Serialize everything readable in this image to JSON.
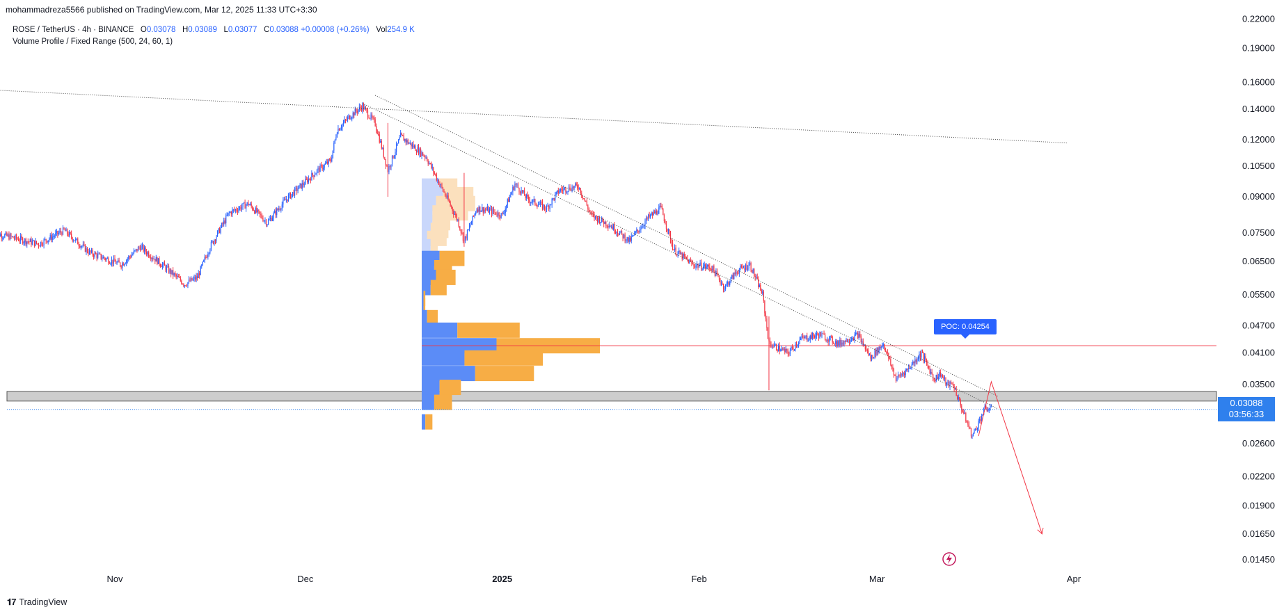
{
  "header": {
    "publish_line": "mohammadreza5566 published on TradingView.com, Mar 12, 2025 11:33 UTC+3:30"
  },
  "legend": {
    "symbol": "ROSE / TetherUS · 4h · BINANCE",
    "o_label": "O",
    "o_value": "0.03078",
    "h_label": "H",
    "h_value": "0.03089",
    "l_label": "L",
    "l_value": "0.03077",
    "c_label": "C",
    "c_value": "0.03088",
    "change": "+0.00008 (+0.26%)",
    "vol_label": "Vol",
    "vol_value": "254.9 K",
    "indicator": "Volume Profile / Fixed Range (500, 24, 60, 1)"
  },
  "colors": {
    "up": "#2962ff",
    "down": "#f23645",
    "vp_up": "#5b8cf7",
    "vp_down": "#f7ad45",
    "vp_up_va_light": "#c9d7fb",
    "vp_down_va_light": "#fbe0bd",
    "poc_line": "#f23645",
    "poc_label_bg": "#2962ff",
    "last_price_bg": "#2f80ed",
    "zone_fill": "#c8c8c8"
  },
  "poc_label": "POC: 0.04254",
  "last_price": {
    "price": "0.03088",
    "countdown": "03:56:33"
  },
  "footer": {
    "brand": "TradingView"
  },
  "chart_data": {
    "type": "candlestick",
    "symbol": "ROSE / TetherUS",
    "interval": "4h",
    "exchange": "BINANCE",
    "y_scale": "log",
    "ylim": [
      0.0135,
      0.225
    ],
    "y_ticks": [
      "0.22000",
      "0.19000",
      "0.16000",
      "0.14000",
      "0.12000",
      "0.10500",
      "0.09000",
      "0.07500",
      "0.06500",
      "0.05500",
      "0.04700",
      "0.04100",
      "0.03500",
      "0.02600",
      "0.02200",
      "0.01900",
      "0.01650",
      "0.01450"
    ],
    "x_ticks": [
      {
        "label": "Nov",
        "date": "2024-11-01",
        "bold": false
      },
      {
        "label": "Dec",
        "date": "2024-12-01",
        "bold": false
      },
      {
        "label": "2025",
        "date": "2025-01-01",
        "bold": true
      },
      {
        "label": "Feb",
        "date": "2025-02-01",
        "bold": false
      },
      {
        "label": "Mar",
        "date": "2025-03-01",
        "bold": false
      },
      {
        "label": "Apr",
        "date": "2025-04-01",
        "bold": false
      }
    ],
    "price_path": [
      [
        "2024-10-13",
        0.075
      ],
      [
        "2024-10-20",
        0.071
      ],
      [
        "2024-10-24",
        0.076
      ],
      [
        "2024-10-28",
        0.068
      ],
      [
        "2024-11-02",
        0.064
      ],
      [
        "2024-11-05",
        0.07
      ],
      [
        "2024-11-09",
        0.063
      ],
      [
        "2024-11-12",
        0.058
      ],
      [
        "2024-11-14",
        0.06
      ],
      [
        "2024-11-16",
        0.07
      ],
      [
        "2024-11-19",
        0.083
      ],
      [
        "2024-11-22",
        0.087
      ],
      [
        "2024-11-25",
        0.079
      ],
      [
        "2024-11-28",
        0.089
      ],
      [
        "2024-12-01",
        0.097
      ],
      [
        "2024-12-03",
        0.103
      ],
      [
        "2024-12-05",
        0.108
      ],
      [
        "2024-12-06",
        0.126
      ],
      [
        "2024-12-08",
        0.135
      ],
      [
        "2024-12-10",
        0.142
      ],
      [
        "2024-12-12",
        0.13
      ],
      [
        "2024-12-14",
        0.103
      ],
      [
        "2024-12-16",
        0.122
      ],
      [
        "2024-12-18",
        0.116
      ],
      [
        "2024-12-20",
        0.11
      ],
      [
        "2024-12-23",
        0.091
      ],
      [
        "2024-12-25",
        0.08
      ],
      [
        "2024-12-26",
        0.072
      ],
      [
        "2024-12-28",
        0.085
      ],
      [
        "2024-12-30",
        0.084
      ],
      [
        "2025-01-01",
        0.082
      ],
      [
        "2025-01-03",
        0.096
      ],
      [
        "2025-01-05",
        0.089
      ],
      [
        "2025-01-08",
        0.085
      ],
      [
        "2025-01-10",
        0.093
      ],
      [
        "2025-01-13",
        0.095
      ],
      [
        "2025-01-15",
        0.082
      ],
      [
        "2025-01-18",
        0.078
      ],
      [
        "2025-01-21",
        0.072
      ],
      [
        "2025-01-24",
        0.081
      ],
      [
        "2025-01-26",
        0.085
      ],
      [
        "2025-01-28",
        0.069
      ],
      [
        "2025-01-31",
        0.064
      ],
      [
        "2025-02-03",
        0.063
      ],
      [
        "2025-02-05",
        0.057
      ],
      [
        "2025-02-07",
        0.062
      ],
      [
        "2025-02-09",
        0.064
      ],
      [
        "2025-02-11",
        0.055
      ],
      [
        "2025-02-12",
        0.043
      ],
      [
        "2025-02-15",
        0.041
      ],
      [
        "2025-02-17",
        0.044
      ],
      [
        "2025-02-20",
        0.045
      ],
      [
        "2025-02-23",
        0.043
      ],
      [
        "2025-02-26",
        0.045
      ],
      [
        "2025-02-28",
        0.04
      ],
      [
        "2025-03-02",
        0.043
      ],
      [
        "2025-03-04",
        0.036
      ],
      [
        "2025-03-06",
        0.038
      ],
      [
        "2025-03-08",
        0.041
      ],
      [
        "2025-03-10",
        0.036
      ],
      [
        "2025-03-11",
        0.037
      ],
      [
        "2025-03-12",
        0.035
      ],
      [
        "2025-03-13",
        0.035
      ],
      [
        "2025-03-14",
        0.032
      ],
      [
        "2025-03-16",
        0.027
      ],
      [
        "2025-03-18",
        0.031
      ],
      [
        "2025-03-19",
        0.0309
      ]
    ],
    "wicks": [
      [
        "2024-12-14",
        0.09
      ],
      [
        "2025-02-12",
        0.034
      ],
      [
        "2024-12-26",
        0.07
      ]
    ],
    "volume_profile": {
      "title": "Volume Profile / Fixed Range (500, 24, 60, 1)",
      "rows": [
        {
          "price": 0.095,
          "up": 0.1,
          "down": 0.1,
          "in_va": false
        },
        {
          "price": 0.091,
          "up": 0.12,
          "down": 0.17,
          "in_va": false
        },
        {
          "price": 0.087,
          "up": 0.08,
          "down": 0.22,
          "in_va": false
        },
        {
          "price": 0.083,
          "up": 0.06,
          "down": 0.2,
          "in_va": false
        },
        {
          "price": 0.079,
          "up": 0.06,
          "down": 0.1,
          "in_va": false
        },
        {
          "price": 0.076,
          "up": 0.05,
          "down": 0.1,
          "in_va": false
        },
        {
          "price": 0.073,
          "up": 0.03,
          "down": 0.11,
          "in_va": false
        },
        {
          "price": 0.07,
          "up": 0.05,
          "down": 0.04,
          "in_va": false
        },
        {
          "price": 0.066,
          "up": 0.1,
          "down": 0.14,
          "in_va": true
        },
        {
          "price": 0.063,
          "up": 0.07,
          "down": 0.1,
          "in_va": true
        },
        {
          "price": 0.06,
          "up": 0.08,
          "down": 0.11,
          "in_va": true
        },
        {
          "price": 0.057,
          "up": 0.05,
          "down": 0.09,
          "in_va": true
        },
        {
          "price": 0.054,
          "up": 0.01,
          "down": 0.01,
          "in_va": true
        },
        {
          "price": 0.052,
          "up": 0.01,
          "down": 0.01,
          "in_va": true
        },
        {
          "price": 0.049,
          "up": 0.03,
          "down": 0.06,
          "in_va": true
        },
        {
          "price": 0.046,
          "up": 0.2,
          "down": 0.35,
          "in_va": true
        },
        {
          "price": 0.04254,
          "up": 0.42,
          "down": 0.58,
          "in_va": true
        },
        {
          "price": 0.04,
          "up": 0.24,
          "down": 0.44,
          "in_va": true
        },
        {
          "price": 0.037,
          "up": 0.3,
          "down": 0.33,
          "in_va": true
        },
        {
          "price": 0.0345,
          "up": 0.1,
          "down": 0.12,
          "in_va": true
        },
        {
          "price": 0.032,
          "up": 0.07,
          "down": 0.1,
          "in_va": true
        },
        {
          "price": 0.029,
          "up": 0.02,
          "down": 0.04,
          "in_va": true
        }
      ],
      "poc": 0.04254
    },
    "drawings": {
      "trendline_long": [
        [
          "2024-10-13",
          0.154
        ],
        [
          "2025-03-31",
          0.118
        ]
      ],
      "trendline_upper": [
        [
          "2024-12-12",
          0.15
        ],
        [
          "2025-03-20",
          0.033
        ]
      ],
      "trendline_lower": [
        [
          "2024-12-10",
          0.144
        ],
        [
          "2025-03-20",
          0.031
        ]
      ],
      "support_zone": [
        0.0322,
        0.0338
      ],
      "projection": [
        [
          "2025-03-17",
          0.027
        ],
        [
          "2025-03-19",
          0.0355
        ],
        [
          "2025-03-27",
          0.0165
        ]
      ]
    }
  }
}
